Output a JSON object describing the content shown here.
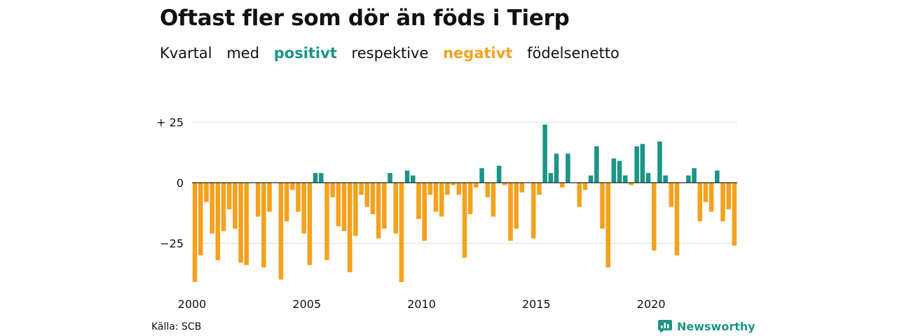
{
  "title": "Oftast fler som dör än föds i Tierp",
  "subtitle": {
    "w1": "Kvartal",
    "w2": "med",
    "positive": "positivt",
    "w3": "respektive",
    "negative": "negativt",
    "w4": "födelsenetto"
  },
  "colors": {
    "positive": "#1a9584",
    "negative": "#f5a11d",
    "grid": "#dddddd",
    "text": "#111111"
  },
  "source": "Källa: SCB",
  "brand": {
    "name": "Newsworthy",
    "icon": "newsworthy-logo-icon"
  },
  "chart_data": {
    "type": "bar",
    "x_unit": "quarter",
    "x_start": "2000 Q1",
    "values": [
      -41,
      -30,
      -8,
      -21,
      -32,
      -20,
      -11,
      -19,
      -33,
      -34,
      0,
      -14,
      -35,
      -12,
      0,
      -40,
      -16,
      -3,
      -12,
      -21,
      -34,
      4,
      4,
      -32,
      -6,
      -18,
      -20,
      -37,
      -22,
      -5,
      -10,
      -13,
      -23,
      -19,
      4,
      -21,
      -41,
      5,
      3,
      -15,
      -24,
      -5,
      -12,
      -14,
      -5,
      -1,
      -5,
      -31,
      -13,
      -2,
      6,
      -6,
      -14,
      7,
      -1,
      -24,
      -19,
      -4,
      0,
      -23,
      -5,
      24,
      4,
      12,
      -2,
      12,
      0,
      -10,
      -3,
      3,
      15,
      -19,
      -35,
      10,
      9,
      3,
      -1,
      15,
      16,
      4,
      -28,
      17,
      3,
      -10,
      -30,
      0,
      3,
      6,
      -16,
      -8,
      -12,
      5,
      -16,
      -11,
      -26
    ],
    "ylim": [
      -42,
      26
    ],
    "yticks": [
      25,
      0,
      -25
    ],
    "ytick_labels": [
      "+ 25",
      "0",
      "−25"
    ],
    "xticks": [
      2000,
      2005,
      2010,
      2015,
      2020
    ],
    "grid": true,
    "legend": "subtitle"
  }
}
